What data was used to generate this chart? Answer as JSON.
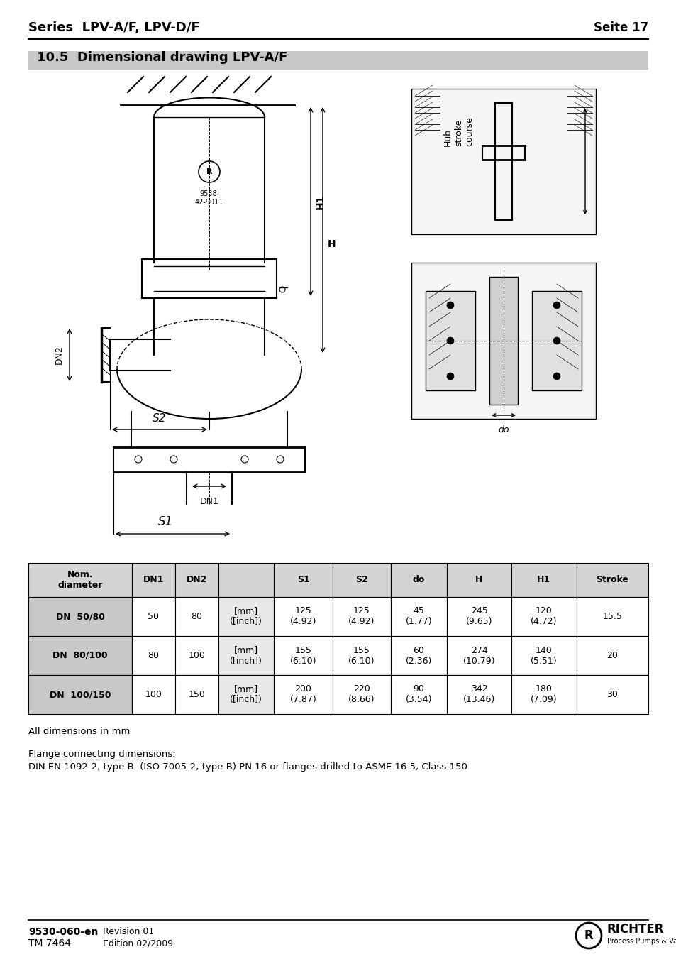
{
  "page_title_left": "Series  LPV-A/F, LPV-D/F",
  "page_title_right": "Seite 17",
  "section_title": "10.5  Dimensional drawing LPV-A/F",
  "section_bg": "#c8c8c8",
  "bg_color": "#ffffff",
  "table_header": [
    "Nom.\ndiameter",
    "DN1",
    "DN2",
    "",
    "S1",
    "S2",
    "do",
    "H",
    "H1",
    "Stroke"
  ],
  "table_rows": [
    [
      "DN  50/80",
      "50",
      "80",
      "[mm]\n([inch])",
      "125\n(4.92)",
      "125\n(4.92)",
      "45\n(1.77)",
      "245\n(9.65)",
      "120\n(4.72)",
      "15.5"
    ],
    [
      "DN  80/100",
      "80",
      "100",
      "[mm]\n([inch])",
      "155\n(6.10)",
      "155\n(6.10)",
      "60\n(2.36)",
      "274\n(10.79)",
      "140\n(5.51)",
      "20"
    ],
    [
      "DN  100/150",
      "100",
      "150",
      "[mm]\n([inch])",
      "200\n(7.87)",
      "220\n(8.66)",
      "90\n(3.54)",
      "342\n(13.46)",
      "180\n(7.09)",
      "30"
    ]
  ],
  "footer_left_bold": "9530-060-en",
  "footer_left_normal": "TM 7464",
  "footer_right1": "Revision 01",
  "footer_right2": "Edition 02/2009",
  "note1": "All dimensions in mm",
  "note2_underline": "Flange connecting dimensions:",
  "note2_body": "DIN EN 1092-2, type B  (ISO 7005-2, type B) PN 16 or flanges drilled to ASME 16.5, Class 150",
  "header_col_bg": "#d4d4d4",
  "row_label_bg": "#c8c8c8",
  "table_border": "#000000",
  "font_color": "#000000"
}
